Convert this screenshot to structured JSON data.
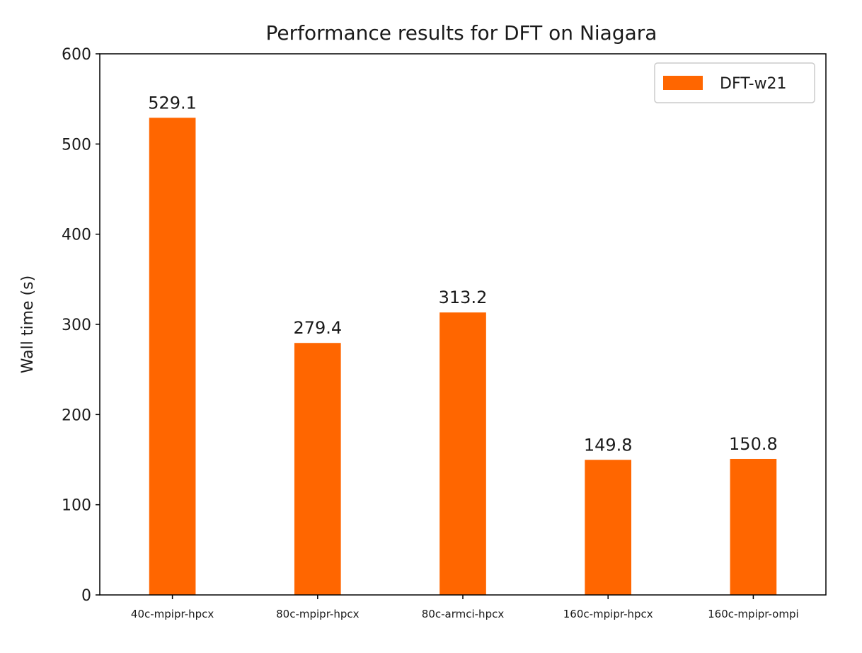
{
  "chart_data": {
    "type": "bar",
    "title": "Performance results for DFT on Niagara",
    "xlabel": "",
    "ylabel": "Wall time (s)",
    "categories": [
      "40c-mpipr-hpcx",
      "80c-mpipr-hpcx",
      "80c-armci-hpcx",
      "160c-mpipr-hpcx",
      "160c-mpipr-ompi"
    ],
    "series": [
      {
        "name": "DFT-w21",
        "color": "#ff6600",
        "values": [
          529.1,
          279.4,
          313.2,
          149.8,
          150.8
        ],
        "labels": [
          "529.1",
          "279.4",
          "313.2",
          "149.8",
          "150.8"
        ]
      }
    ],
    "ylim": [
      0,
      600
    ],
    "yticks": [
      0,
      100,
      200,
      300,
      400,
      500,
      600
    ],
    "grid": false,
    "legend": "top-right"
  }
}
